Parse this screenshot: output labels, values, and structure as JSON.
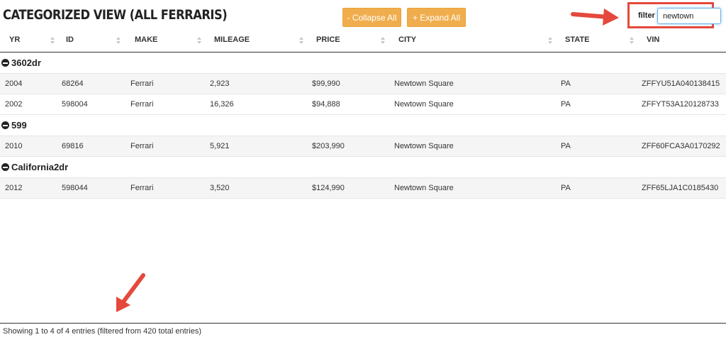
{
  "title": "CATEGORIZED VIEW (ALL FERRARIS)",
  "buttons": {
    "collapse_label": "- Collapse All",
    "expand_label": "+ Expand All"
  },
  "filter": {
    "label": "filter",
    "value": "newtown"
  },
  "columns": [
    "YR",
    "ID",
    "MAKE",
    "MILEAGE",
    "PRICE",
    "CITY",
    "STATE",
    "VIN"
  ],
  "groups": [
    {
      "name": "3602dr",
      "rows": [
        [
          "2004",
          "68264",
          "Ferrari",
          "2,923",
          "$99,990",
          "Newtown Square",
          "PA",
          "ZFFYU51A040138415"
        ],
        [
          "2002",
          "598004",
          "Ferrari",
          "16,326",
          "$94,888",
          "Newtown Square",
          "PA",
          "ZFFYT53A120128733"
        ]
      ]
    },
    {
      "name": "599",
      "rows": [
        [
          "2010",
          "69816",
          "Ferrari",
          "5,921",
          "$203,990",
          "Newtown Square",
          "PA",
          "ZFF60FCA3A0170292"
        ]
      ]
    },
    {
      "name": "California2dr",
      "rows": [
        [
          "2012",
          "598044",
          "Ferrari",
          "3,520",
          "$124,990",
          "Newtown Square",
          "PA",
          "ZFF65LJA1C0185430"
        ]
      ]
    }
  ],
  "footer": {
    "info": "Showing 1 to 4 of 4 entries (filtered from 420 total entries)"
  },
  "colors": {
    "accent_button": "#f0ad4e",
    "annotation": "#e5483c",
    "input_focus": "#66afe9"
  }
}
